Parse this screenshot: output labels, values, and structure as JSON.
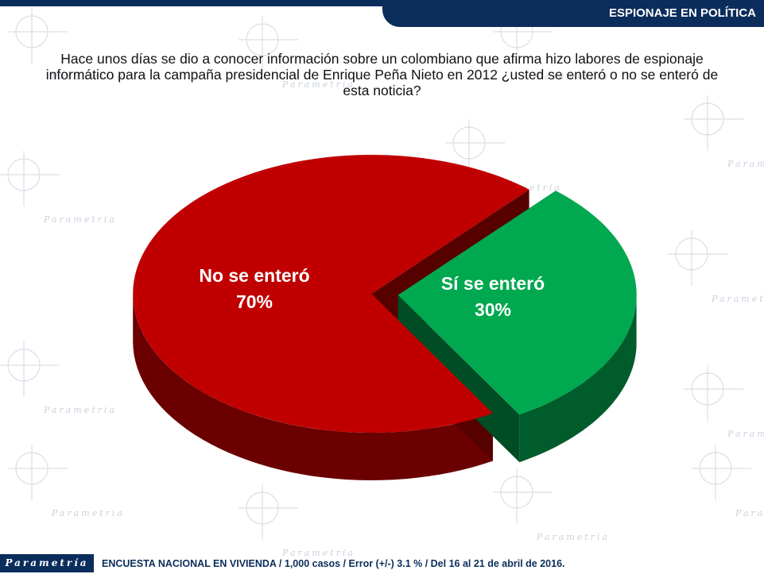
{
  "header": {
    "section_title": "ESPIONAJE EN POLÍTICA"
  },
  "question": {
    "text": "Hace unos días se dio a conocer información sobre un colombiano que afirma hizo labores de espionaje informático para la campaña presidencial de Enrique Peña Nieto en 2012 ¿usted se enteró o no se enteró de esta noticia?"
  },
  "watermark": {
    "brand": "Parametria"
  },
  "chart_data": {
    "type": "pie",
    "title": "",
    "slices": [
      {
        "label": "No se enteró",
        "value": 70,
        "value_label": "70%",
        "color": "#c00000"
      },
      {
        "label": "Sí se enteró",
        "value": 30,
        "value_label": "30%",
        "color": "#00a84f"
      }
    ]
  },
  "footer": {
    "brand": "Parametría",
    "source": "ENCUESTA NACIONAL EN VIVIENDA / 1,000 casos / Error (+/-) 3.1 % / Del 16 al 21 de abril de 2016."
  }
}
